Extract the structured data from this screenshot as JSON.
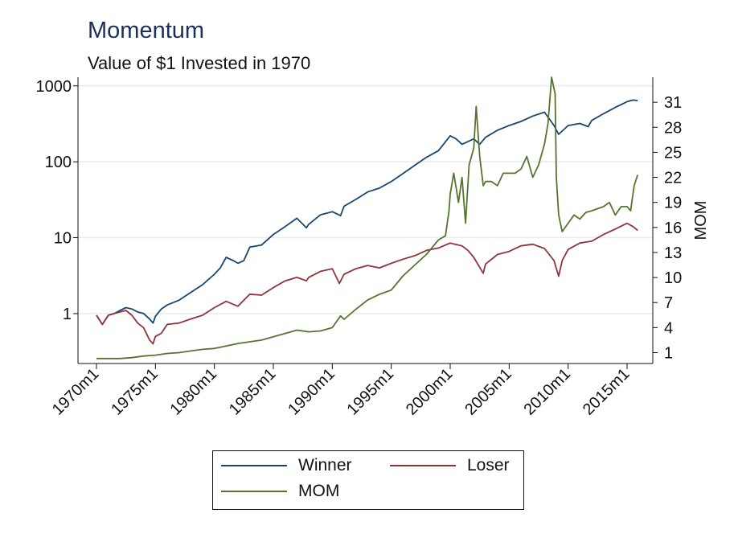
{
  "title": "Momentum",
  "subtitle": "Value of $1 Invested in 1970",
  "colors": {
    "winner": "#1a476f",
    "loser": "#90353b",
    "mom": "#55752f",
    "title": "#1a2f5a",
    "grid": "#e8ecef"
  },
  "legend": {
    "placement": "bottom",
    "items": [
      {
        "label": "Winner",
        "color": "#1a476f"
      },
      {
        "label": "Loser",
        "color": "#90353b"
      },
      {
        "label": "MOM",
        "color": "#55752f"
      }
    ]
  },
  "chart_data": {
    "type": "line",
    "title": "Momentum",
    "subtitle": "Value of $1 Invested in 1970",
    "xlabel": "",
    "x_ticks": [
      "1970m1",
      "1975m1",
      "1980m1",
      "1985m1",
      "1990m1",
      "1995m1",
      "2000m1",
      "2005m1",
      "2010m1",
      "2015m1"
    ],
    "x_range": [
      1970.0,
      2016.0
    ],
    "y_left": {
      "scale": "log",
      "ticks": [
        "1",
        "10",
        "100",
        "1000"
      ],
      "range": [
        0.22,
        1300
      ],
      "label": ""
    },
    "y_right": {
      "scale": "linear",
      "ticks": [
        "1",
        "4",
        "7",
        "10",
        "13",
        "16",
        "19",
        "22",
        "25",
        "28",
        "31"
      ],
      "range": [
        -0.3,
        34
      ],
      "label": "MOM"
    },
    "grid": true,
    "series": [
      {
        "name": "Winner",
        "axis": "left",
        "points": [
          [
            1970.0,
            0.95
          ],
          [
            1970.5,
            0.72
          ],
          [
            1971.0,
            0.95
          ],
          [
            1971.5,
            1.0
          ],
          [
            1972.0,
            1.1
          ],
          [
            1972.5,
            1.2
          ],
          [
            1973.0,
            1.15
          ],
          [
            1973.5,
            1.05
          ],
          [
            1974.0,
            1.0
          ],
          [
            1974.5,
            0.85
          ],
          [
            1974.8,
            0.75
          ],
          [
            1975.0,
            0.92
          ],
          [
            1975.5,
            1.15
          ],
          [
            1976.0,
            1.3
          ],
          [
            1977.0,
            1.5
          ],
          [
            1978.0,
            1.9
          ],
          [
            1979.0,
            2.4
          ],
          [
            1980.0,
            3.3
          ],
          [
            1980.5,
            4.0
          ],
          [
            1981.0,
            5.5
          ],
          [
            1981.6,
            5.0
          ],
          [
            1982.0,
            4.6
          ],
          [
            1982.5,
            5.0
          ],
          [
            1983.0,
            7.5
          ],
          [
            1984.0,
            8.0
          ],
          [
            1985.0,
            11.0
          ],
          [
            1986.0,
            14.0
          ],
          [
            1987.0,
            18.0
          ],
          [
            1987.8,
            13.5
          ],
          [
            1988.0,
            15.0
          ],
          [
            1989.0,
            20.0
          ],
          [
            1990.0,
            22.0
          ],
          [
            1990.7,
            19.5
          ],
          [
            1991.0,
            26.0
          ],
          [
            1992.0,
            32.0
          ],
          [
            1993.0,
            40.0
          ],
          [
            1994.0,
            45.0
          ],
          [
            1995.0,
            55.0
          ],
          [
            1996.0,
            70.0
          ],
          [
            1997.0,
            90.0
          ],
          [
            1998.0,
            115.0
          ],
          [
            1999.0,
            140.0
          ],
          [
            2000.0,
            220.0
          ],
          [
            2000.5,
            200.0
          ],
          [
            2001.0,
            170.0
          ],
          [
            2002.0,
            200.0
          ],
          [
            2002.5,
            170.0
          ],
          [
            2003.0,
            210.0
          ],
          [
            2004.0,
            260.0
          ],
          [
            2005.0,
            300.0
          ],
          [
            2006.0,
            340.0
          ],
          [
            2007.0,
            400.0
          ],
          [
            2008.0,
            450.0
          ],
          [
            2008.8,
            300.0
          ],
          [
            2009.2,
            230.0
          ],
          [
            2010.0,
            300.0
          ],
          [
            2011.0,
            320.0
          ],
          [
            2011.7,
            290.0
          ],
          [
            2012.0,
            350.0
          ],
          [
            2013.0,
            430.0
          ],
          [
            2014.0,
            520.0
          ],
          [
            2015.0,
            620.0
          ],
          [
            2015.5,
            650.0
          ],
          [
            2015.9,
            640.0
          ]
        ]
      },
      {
        "name": "Loser",
        "axis": "left",
        "points": [
          [
            1970.0,
            0.95
          ],
          [
            1970.5,
            0.72
          ],
          [
            1971.0,
            0.95
          ],
          [
            1971.5,
            1.0
          ],
          [
            1972.0,
            1.05
          ],
          [
            1972.5,
            1.1
          ],
          [
            1973.0,
            0.95
          ],
          [
            1973.5,
            0.75
          ],
          [
            1974.0,
            0.65
          ],
          [
            1974.5,
            0.45
          ],
          [
            1974.8,
            0.4
          ],
          [
            1975.0,
            0.5
          ],
          [
            1975.5,
            0.55
          ],
          [
            1976.0,
            0.72
          ],
          [
            1977.0,
            0.75
          ],
          [
            1978.0,
            0.85
          ],
          [
            1979.0,
            0.95
          ],
          [
            1980.0,
            1.2
          ],
          [
            1981.0,
            1.45
          ],
          [
            1982.0,
            1.25
          ],
          [
            1983.0,
            1.8
          ],
          [
            1984.0,
            1.75
          ],
          [
            1985.0,
            2.2
          ],
          [
            1986.0,
            2.7
          ],
          [
            1987.0,
            3.0
          ],
          [
            1987.8,
            2.7
          ],
          [
            1988.0,
            3.0
          ],
          [
            1989.0,
            3.6
          ],
          [
            1990.0,
            3.9
          ],
          [
            1990.6,
            2.5
          ],
          [
            1991.0,
            3.3
          ],
          [
            1992.0,
            3.9
          ],
          [
            1993.0,
            4.3
          ],
          [
            1994.0,
            4.0
          ],
          [
            1995.0,
            4.6
          ],
          [
            1996.0,
            5.2
          ],
          [
            1997.0,
            5.8
          ],
          [
            1998.0,
            6.8
          ],
          [
            1999.0,
            7.3
          ],
          [
            2000.0,
            8.5
          ],
          [
            2001.0,
            7.8
          ],
          [
            2001.5,
            6.8
          ],
          [
            2002.0,
            5.5
          ],
          [
            2002.8,
            3.4
          ],
          [
            2003.0,
            4.5
          ],
          [
            2004.0,
            6.0
          ],
          [
            2005.0,
            6.6
          ],
          [
            2006.0,
            7.8
          ],
          [
            2007.0,
            8.2
          ],
          [
            2008.0,
            7.2
          ],
          [
            2008.8,
            5.0
          ],
          [
            2009.2,
            3.1
          ],
          [
            2009.5,
            5.0
          ],
          [
            2010.0,
            7.0
          ],
          [
            2011.0,
            8.5
          ],
          [
            2012.0,
            9.0
          ],
          [
            2013.0,
            11.0
          ],
          [
            2014.0,
            13.0
          ],
          [
            2015.0,
            15.5
          ],
          [
            2015.5,
            14.0
          ],
          [
            2015.9,
            12.5
          ]
        ]
      },
      {
        "name": "MOM",
        "axis": "right",
        "points": [
          [
            1970.0,
            0.3
          ],
          [
            1972.0,
            0.3
          ],
          [
            1973.0,
            0.4
          ],
          [
            1974.0,
            0.6
          ],
          [
            1975.0,
            0.7
          ],
          [
            1976.0,
            0.9
          ],
          [
            1977.0,
            1.0
          ],
          [
            1978.0,
            1.2
          ],
          [
            1979.0,
            1.4
          ],
          [
            1980.0,
            1.5
          ],
          [
            1981.0,
            1.8
          ],
          [
            1982.0,
            2.1
          ],
          [
            1983.0,
            2.3
          ],
          [
            1984.0,
            2.5
          ],
          [
            1985.0,
            2.9
          ],
          [
            1986.0,
            3.3
          ],
          [
            1987.0,
            3.7
          ],
          [
            1988.0,
            3.5
          ],
          [
            1989.0,
            3.6
          ],
          [
            1990.0,
            4.0
          ],
          [
            1990.7,
            5.4
          ],
          [
            1991.0,
            5.0
          ],
          [
            1992.0,
            6.2
          ],
          [
            1993.0,
            7.3
          ],
          [
            1994.0,
            8.0
          ],
          [
            1995.0,
            8.5
          ],
          [
            1996.0,
            10.2
          ],
          [
            1997.0,
            11.5
          ],
          [
            1998.0,
            12.8
          ],
          [
            1999.0,
            14.5
          ],
          [
            1999.6,
            15.0
          ],
          [
            1999.9,
            18.0
          ],
          [
            2000.0,
            20.0
          ],
          [
            2000.3,
            22.5
          ],
          [
            2000.7,
            19.0
          ],
          [
            2001.0,
            22.0
          ],
          [
            2001.3,
            16.5
          ],
          [
            2001.6,
            23.5
          ],
          [
            2002.0,
            25.5
          ],
          [
            2002.2,
            30.5
          ],
          [
            2002.5,
            24.5
          ],
          [
            2002.8,
            21.0
          ],
          [
            2003.0,
            21.5
          ],
          [
            2003.5,
            21.5
          ],
          [
            2004.0,
            21.0
          ],
          [
            2004.5,
            22.5
          ],
          [
            2005.0,
            22.5
          ],
          [
            2005.5,
            22.5
          ],
          [
            2006.0,
            23.0
          ],
          [
            2006.5,
            24.5
          ],
          [
            2007.0,
            22.0
          ],
          [
            2007.5,
            23.5
          ],
          [
            2008.0,
            26.0
          ],
          [
            2008.3,
            28.5
          ],
          [
            2008.6,
            34.0
          ],
          [
            2008.9,
            32.0
          ],
          [
            2009.0,
            22.0
          ],
          [
            2009.2,
            17.5
          ],
          [
            2009.5,
            15.5
          ],
          [
            2010.0,
            16.5
          ],
          [
            2010.5,
            17.5
          ],
          [
            2011.0,
            17.0
          ],
          [
            2011.5,
            17.8
          ],
          [
            2012.0,
            18.0
          ],
          [
            2013.0,
            18.5
          ],
          [
            2013.5,
            19.0
          ],
          [
            2014.0,
            17.5
          ],
          [
            2014.5,
            18.5
          ],
          [
            2015.0,
            18.5
          ],
          [
            2015.3,
            18.0
          ],
          [
            2015.6,
            21.0
          ],
          [
            2015.9,
            22.3
          ]
        ]
      }
    ]
  }
}
